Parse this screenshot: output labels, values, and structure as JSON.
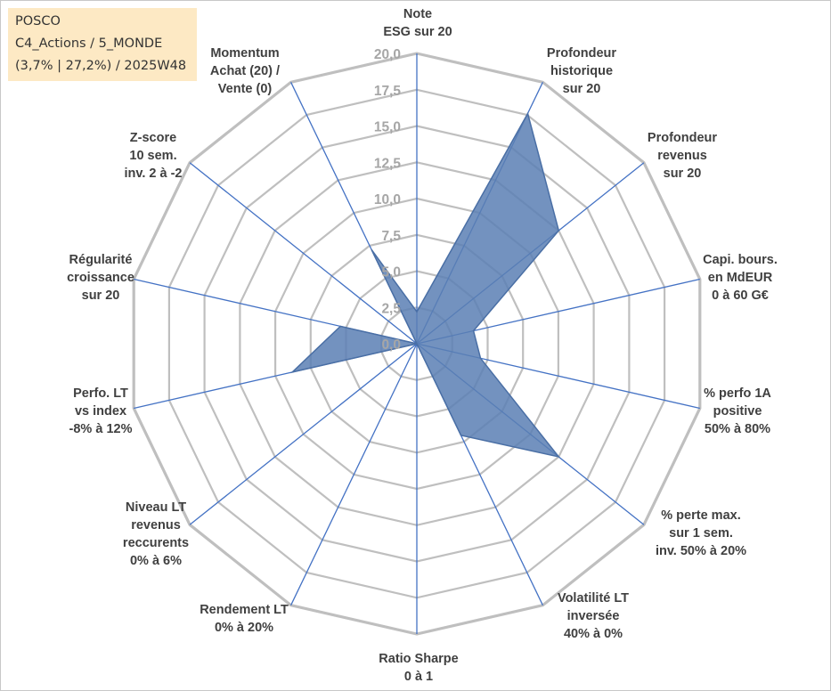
{
  "info": {
    "line1": "POSCO",
    "line2": "C4_Actions / 5_MONDE",
    "line3": "(3,7% | 27,2%) / 2025W48"
  },
  "colors": {
    "grid": "#bfbfbf",
    "spoke": "#4472c4",
    "fill": "#5b7fb4",
    "fill_stroke": "#4a6fa5",
    "info_bg": "#fde9c4"
  },
  "chart_data": {
    "type": "radar",
    "title": "",
    "range": [
      0,
      20
    ],
    "step": 2.5,
    "tick_labels": [
      "0,0",
      "2,5",
      "5,0",
      "7,5",
      "10,0",
      "12,5",
      "15,0",
      "17,5",
      "20,0"
    ],
    "axes": [
      {
        "lines": [
          "Note",
          "ESG sur 20"
        ],
        "value": 2.2
      },
      {
        "lines": [
          "Profondeur",
          "historique",
          "sur 20"
        ],
        "value": 17.6
      },
      {
        "lines": [
          "Profondeur",
          "revenus",
          "sur 20"
        ],
        "value": 12.5
      },
      {
        "lines": [
          "Capi. bours.",
          "en MdEUR",
          "0 à 60 G€"
        ],
        "value": 4.0
      },
      {
        "lines": [
          "% perfo 1A",
          "positive",
          "50% à 80%"
        ],
        "value": 4.5
      },
      {
        "lines": [
          "% perte max.",
          "sur 1 sem.",
          "inv. 50% à 20%"
        ],
        "value": 12.5
      },
      {
        "lines": [
          "Volatilité LT",
          "inversée",
          "40% à 0%"
        ],
        "value": 7.0
      },
      {
        "lines": [
          "Ratio Sharpe",
          "0 à 1"
        ],
        "value": 0.0
      },
      {
        "lines": [
          "Rendement LT",
          "0% à 20%"
        ],
        "value": 0.0
      },
      {
        "lines": [
          "Niveau LT",
          "revenus",
          "reccurents",
          "0% à 6%"
        ],
        "value": 0.0
      },
      {
        "lines": [
          "Perfo. LT",
          "vs index",
          "-8% à 12%"
        ],
        "value": 8.8
      },
      {
        "lines": [
          "Régularité",
          "croissance",
          "sur 20"
        ],
        "value": 5.4
      },
      {
        "lines": [
          "Z-score",
          "10 sem.",
          "inv. 2 à -2"
        ],
        "value": 0.0
      },
      {
        "lines": [
          "Momentum",
          "Achat (20) /",
          "Vente (0)"
        ],
        "value": 7.2
      }
    ]
  }
}
